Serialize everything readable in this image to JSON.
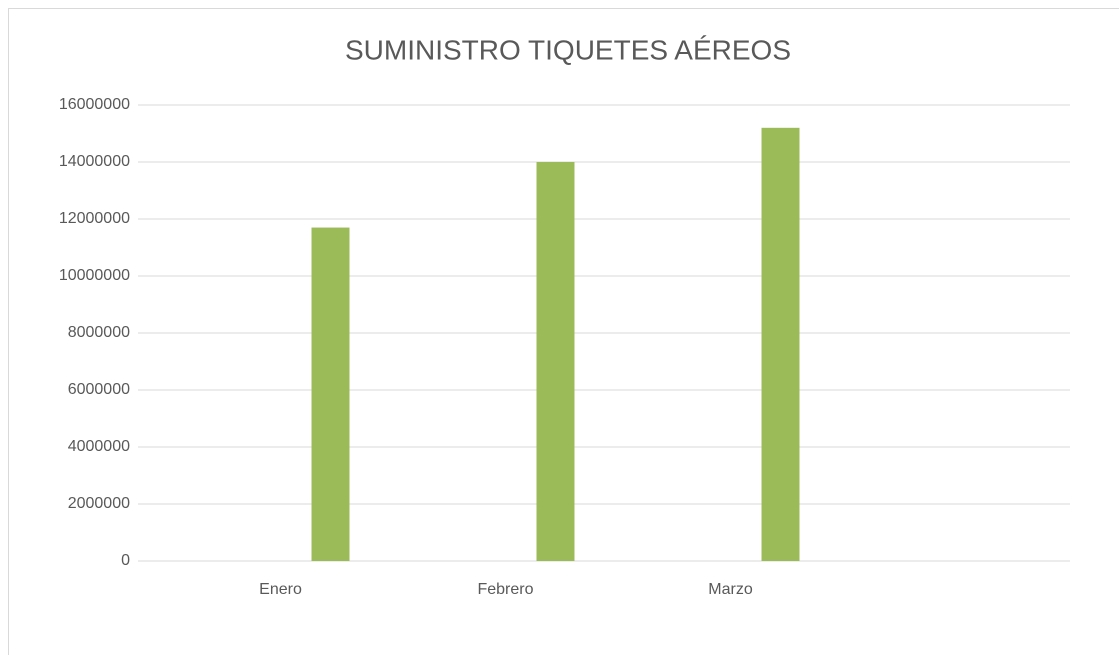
{
  "chart_data": {
    "type": "bar",
    "title": "SUMINISTRO TIQUETES AÉREOS",
    "categories": [
      "Enero",
      "Febrero",
      "Marzo",
      null
    ],
    "values": [
      11700000,
      14000000,
      15200000,
      null
    ],
    "color": "#9bbb59",
    "ylim": [
      0,
      16000000
    ],
    "yticks": [
      0,
      2000000,
      4000000,
      6000000,
      8000000,
      10000000,
      12000000,
      14000000,
      16000000
    ],
    "grid": true
  }
}
